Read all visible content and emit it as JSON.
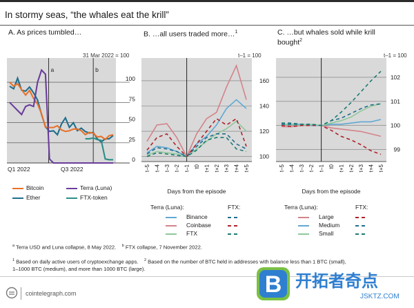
{
  "title": "In stormy seas, “the whales eat the krill”",
  "panels": {
    "a": {
      "title": "A. As prices tumbled…",
      "unit": "31 Mar 2022 = 100"
    },
    "b": {
      "title": "B. …all users traded more…",
      "sup": "1",
      "unit": "t–1 = 100"
    },
    "c": {
      "title_line1": "C. …but whales sold while krill",
      "title_line2": "bought",
      "sup": "2",
      "unit": "t–1 = 100"
    }
  },
  "legend_a": {
    "bitcoin": "Bitcoin",
    "ether": "Ether",
    "terra": "Terra (Luna)",
    "ftx_token": "FTX-token"
  },
  "legend_b": {
    "head_terra": "Terra (Luna):",
    "head_ftx": "FTX:",
    "rows": [
      "Binance",
      "Coinbase",
      "FTX"
    ]
  },
  "legend_c": {
    "head_terra": "Terra (Luna):",
    "head_ftx": "FTX:",
    "rows": [
      "Large",
      "Medium",
      "Small"
    ]
  },
  "xlabel_bc": "Days from the episode",
  "notes": {
    "a_mark": "a",
    "a_text": "Terra USD and Luna collapse, 8 May 2022.",
    "b_mark": "b",
    "b_text": "FTX collapse, 7 November 2022.",
    "n1_mark": "1",
    "n1_text": "Based on daily active users of cryptoexchange apps.",
    "n2_mark": "2",
    "n2_text": "Based on the number of BTC held in addresses with balance less than 1 BTC (small),",
    "n2_text2": "1–1000 BTC (medium), and more than 1000 BTC (large)."
  },
  "brand": "cointelegraph.com",
  "watermark": {
    "letter": "B",
    "cn": "开拓者奇点",
    "url": "JSKTZ.COM"
  },
  "colors": {
    "bitcoin": "#e8712a",
    "ether": "#1f6e8c",
    "terra": "#6a3d9a",
    "ftx_token": "#2a8f86",
    "binance": "#5fa8d3",
    "coinbase": "#d4828a",
    "ftx": "#8fc89b",
    "dark_red": "#b0202a",
    "dark_teal": "#1c7a72",
    "panel_bg": "#d9d9d9"
  },
  "chart_data": [
    {
      "panel": "A",
      "type": "line",
      "x_ticks": [
        "Q1 2022",
        "Q3 2022"
      ],
      "y_ticks": [
        0,
        25,
        50,
        75,
        100
      ],
      "ylim": [
        0,
        130
      ],
      "annotations": [
        "a",
        "b"
      ],
      "series": [
        {
          "name": "Bitcoin",
          "values": [
            100,
            95,
            100,
            90,
            85,
            88,
            80,
            75,
            60,
            45,
            42,
            44,
            48,
            40,
            40,
            38,
            42,
            44,
            39,
            36,
            36,
            37,
            34,
            32,
            30,
            32,
            35
          ]
        },
        {
          "name": "Ether",
          "values": [
            95,
            90,
            105,
            92,
            88,
            95,
            85,
            78,
            62,
            44,
            40,
            38,
            35,
            50,
            55,
            45,
            48,
            40,
            45,
            38,
            38,
            36,
            30,
            28,
            29,
            31,
            34
          ]
        },
        {
          "name": "Terra (Luna)",
          "values": [
            75,
            70,
            65,
            60,
            70,
            72,
            70,
            100,
            115,
            110,
            5,
            0,
            0,
            0,
            0,
            0,
            0,
            0,
            0,
            0,
            0,
            0,
            0,
            0,
            0,
            0,
            0
          ]
        },
        {
          "name": "FTX-token",
          "values": [
            null,
            null,
            null,
            null,
            null,
            null,
            null,
            null,
            null,
            null,
            null,
            null,
            null,
            null,
            null,
            null,
            null,
            null,
            null,
            30,
            30,
            31,
            29,
            28,
            5,
            4,
            4
          ]
        }
      ]
    },
    {
      "panel": "B",
      "type": "line",
      "x": [
        "t–5",
        "t–4",
        "t–3",
        "t–2",
        "t–1",
        "t0",
        "t+1",
        "t+2",
        "t+3",
        "t+4",
        "t+5"
      ],
      "y_ticks": [
        100,
        120,
        140,
        160
      ],
      "ylim": [
        96,
        178
      ],
      "series": [
        {
          "name": "Terra (Luna): Binance",
          "values": [
            103,
            108,
            107,
            104,
            100,
            110,
            116,
            125,
            138,
            145,
            138
          ]
        },
        {
          "name": "Terra (Luna): Coinbase",
          "values": [
            112,
            125,
            126,
            115,
            100,
            118,
            130,
            135,
            155,
            172,
            145
          ]
        },
        {
          "name": "Terra (Luna): FTX",
          "values": [
            101,
            104,
            103,
            102,
            100,
            106,
            112,
            118,
            122,
            128,
            120
          ]
        },
        {
          "name": "FTX: Binance",
          "values": [
            102,
            107,
            106,
            104,
            100,
            108,
            115,
            118,
            118,
            110,
            106
          ]
        },
        {
          "name": "FTX: Coinbase",
          "values": [
            105,
            115,
            118,
            108,
            100,
            110,
            120,
            130,
            125,
            130,
            108
          ]
        },
        {
          "name": "FTX: FTX",
          "values": [
            100,
            103,
            102,
            101,
            100,
            105,
            113,
            115,
            115,
            106,
            104
          ]
        }
      ]
    },
    {
      "panel": "C",
      "type": "line",
      "x": [
        "t–5",
        "t–4",
        "t–3",
        "t–2",
        "t–1",
        "t0",
        "t+1",
        "t+2",
        "t+3",
        "t+4",
        "t+5"
      ],
      "y_ticks": [
        99,
        100,
        101,
        102
      ],
      "ylim": [
        98.5,
        102.8
      ],
      "series": [
        {
          "name": "Terra (Luna): Large",
          "values": [
            99.95,
            99.95,
            100.0,
            100.0,
            100.0,
            99.9,
            99.85,
            99.8,
            99.75,
            99.65,
            99.55
          ]
        },
        {
          "name": "Terra (Luna): Medium",
          "values": [
            100.05,
            100.05,
            100.05,
            100.0,
            100.0,
            100.05,
            100.05,
            100.1,
            100.15,
            100.15,
            100.25
          ]
        },
        {
          "name": "Terra (Luna): Small",
          "values": [
            100.05,
            100.05,
            100.0,
            100.05,
            100.0,
            100.1,
            100.2,
            100.35,
            100.6,
            100.8,
            100.9
          ]
        },
        {
          "name": "FTX: Large",
          "values": [
            100.0,
            99.95,
            100.0,
            100.0,
            100.0,
            99.8,
            99.55,
            99.4,
            99.2,
            98.95,
            98.8
          ]
        },
        {
          "name": "FTX: Medium",
          "values": [
            100.05,
            100.05,
            100.05,
            100.05,
            100.0,
            100.2,
            100.3,
            100.5,
            100.7,
            100.85,
            100.9
          ]
        },
        {
          "name": "FTX: Small",
          "values": [
            100.1,
            100.1,
            100.05,
            100.05,
            100.0,
            100.2,
            100.55,
            100.95,
            101.4,
            101.85,
            102.25
          ]
        }
      ]
    }
  ]
}
